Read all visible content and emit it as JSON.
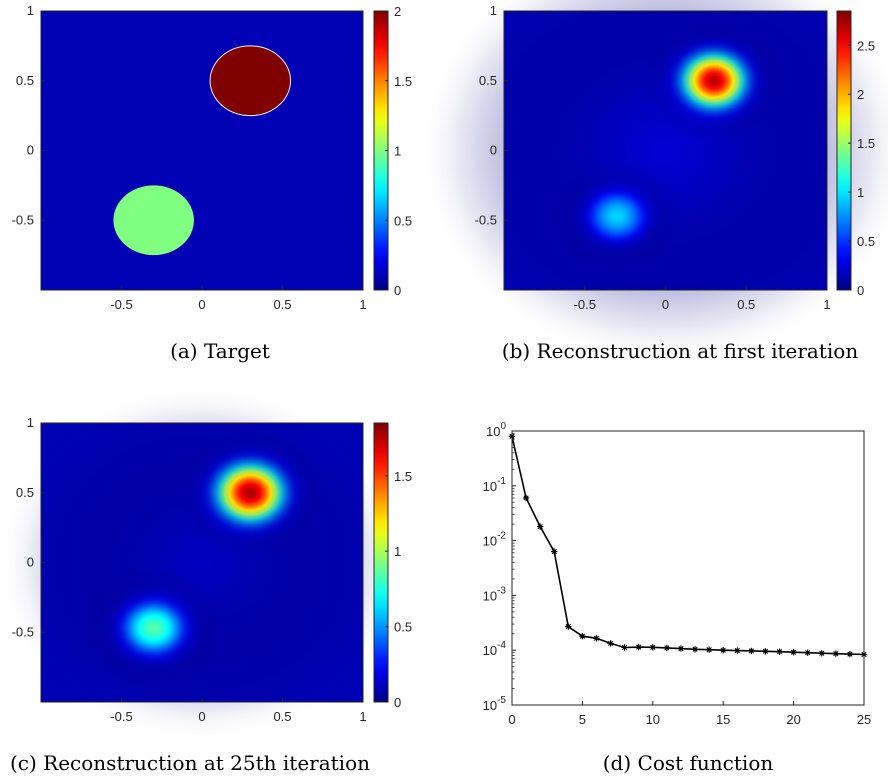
{
  "panels": [
    {
      "caption": "(a) Target",
      "chart_data": {
        "type": "heatmap",
        "title": "",
        "xlim": [
          -1,
          1
        ],
        "ylim": [
          -1,
          1
        ],
        "xticks": [
          -0.5,
          0,
          0.5,
          1
        ],
        "yticks": [
          -0.5,
          0,
          0.5,
          1
        ],
        "colormap": "jet",
        "clim": [
          0,
          2
        ],
        "colorbar_ticks": [
          0,
          0.5,
          1,
          1.5,
          2
        ],
        "inclusions": [
          {
            "x": 0.3,
            "y": 0.5,
            "radius": 0.25,
            "value": 2
          },
          {
            "x": -0.3,
            "y": -0.5,
            "radius": 0.25,
            "value": 1
          }
        ]
      }
    },
    {
      "caption": "(b) Reconstruction at first iteration",
      "chart_data": {
        "type": "heatmap",
        "title": "",
        "xlim": [
          -1,
          1
        ],
        "ylim": [
          -1,
          1
        ],
        "xticks": [
          -0.5,
          0,
          0.5,
          1
        ],
        "yticks": [
          -0.5,
          0,
          0.5,
          1
        ],
        "colormap": "jet",
        "clim": [
          0,
          2.85
        ],
        "colorbar_ticks": [
          0,
          0.5,
          1,
          1.5,
          2,
          2.5
        ],
        "blobs": [
          {
            "x": 0.3,
            "y": 0.5,
            "sigma": 0.16,
            "peak": 2.7
          },
          {
            "x": -0.3,
            "y": -0.47,
            "sigma": 0.15,
            "peak": 0.95
          },
          {
            "x": 0.0,
            "y": 0.0,
            "sigma": 0.55,
            "peak": 0.25
          }
        ]
      }
    },
    {
      "caption": "(c) Reconstruction at 25th iteration",
      "chart_data": {
        "type": "heatmap",
        "title": "",
        "xlim": [
          -1,
          1
        ],
        "ylim": [
          -1,
          1
        ],
        "xticks": [
          -0.5,
          0,
          0.5,
          1
        ],
        "yticks": [
          -0.5,
          0,
          0.5,
          1
        ],
        "colormap": "jet",
        "clim": [
          0,
          1.85
        ],
        "colorbar_ticks": [
          0,
          0.5,
          1,
          1.5
        ],
        "blobs": [
          {
            "x": 0.3,
            "y": 0.5,
            "sigma": 0.17,
            "peak": 1.78
          },
          {
            "x": -0.3,
            "y": -0.47,
            "sigma": 0.16,
            "peak": 0.85
          },
          {
            "x": 0.0,
            "y": 0.0,
            "sigma": 0.45,
            "peak": 0.12
          }
        ]
      }
    },
    {
      "caption": "(d) Cost function",
      "chart_data": {
        "type": "line",
        "title": "",
        "xlabel": "",
        "ylabel": "",
        "yscale": "log",
        "xlim": [
          0,
          25
        ],
        "ylim": [
          1e-05,
          1
        ],
        "grid": false,
        "marker": "asterisk",
        "xticks": [
          "0",
          "5",
          "10",
          "15",
          "20",
          "25"
        ],
        "yticks": [
          {
            "base": "10",
            "exp": "0"
          },
          {
            "base": "10",
            "exp": "-1"
          },
          {
            "base": "10",
            "exp": "-2"
          },
          {
            "base": "10",
            "exp": "-3"
          },
          {
            "base": "10",
            "exp": "-4"
          },
          {
            "base": "10",
            "exp": "-5"
          }
        ],
        "x": [
          0,
          1,
          2,
          3,
          4,
          5,
          6,
          7,
          8,
          9,
          10,
          11,
          12,
          13,
          14,
          15,
          16,
          17,
          18,
          19,
          20,
          21,
          22,
          23,
          24,
          25
        ],
        "y": [
          0.8,
          0.06,
          0.018,
          0.0063,
          0.00027,
          0.00018,
          0.000165,
          0.000133,
          0.000112,
          0.000114,
          0.000113,
          0.00011,
          0.000107,
          0.000104,
          0.000102,
          0.0001,
          9.85e-05,
          9.7e-05,
          9.55e-05,
          9.4e-05,
          9.2e-05,
          9e-05,
          8.8e-05,
          8.65e-05,
          8.5e-05,
          8.35e-05
        ]
      }
    }
  ]
}
